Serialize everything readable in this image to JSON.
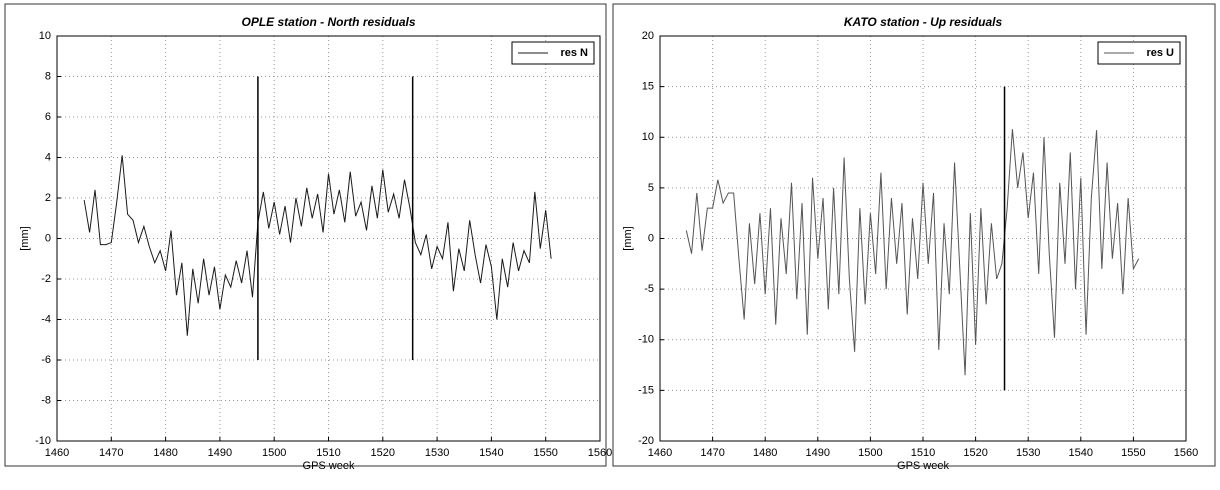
{
  "chart_data": [
    {
      "type": "line",
      "title": "OPLE station - North residuals",
      "x_label": "GPS week",
      "y_label": "[mm]",
      "x": [
        1465,
        1466,
        1467,
        1468,
        1469,
        1470,
        1471,
        1472,
        1473,
        1474,
        1475,
        1476,
        1477,
        1478,
        1479,
        1480,
        1481,
        1482,
        1483,
        1484,
        1485,
        1486,
        1487,
        1488,
        1489,
        1490,
        1491,
        1492,
        1493,
        1494,
        1495,
        1496,
        1497,
        1498,
        1499,
        1500,
        1501,
        1502,
        1503,
        1504,
        1505,
        1506,
        1507,
        1508,
        1509,
        1510,
        1511,
        1512,
        1513,
        1514,
        1515,
        1516,
        1517,
        1518,
        1519,
        1520,
        1521,
        1522,
        1523,
        1524,
        1525,
        1526,
        1527,
        1528,
        1529,
        1530,
        1531,
        1532,
        1533,
        1534,
        1535,
        1536,
        1537,
        1538,
        1539,
        1540,
        1541,
        1542,
        1543,
        1544,
        1545,
        1546,
        1547,
        1548,
        1549,
        1550,
        1551
      ],
      "series": [
        {
          "name": "res N",
          "color": "#1a1a1a",
          "values": [
            1.9,
            0.3,
            2.4,
            -0.3,
            -0.3,
            -0.2,
            1.8,
            4.1,
            1.2,
            0.9,
            -0.2,
            0.6,
            -0.4,
            -1.2,
            -0.6,
            -1.6,
            0.4,
            -2.8,
            -1.2,
            -4.8,
            -1.5,
            -3.2,
            -1.0,
            -2.8,
            -1.4,
            -3.5,
            -1.8,
            -2.4,
            -1.1,
            -2.2,
            -0.6,
            -2.9,
            0.8,
            2.3,
            0.5,
            1.8,
            0.2,
            1.6,
            -0.2,
            2.0,
            0.6,
            2.5,
            1.0,
            2.2,
            0.3,
            3.2,
            1.2,
            2.4,
            0.8,
            3.3,
            1.1,
            1.8,
            0.4,
            2.6,
            1.0,
            3.4,
            1.3,
            2.2,
            1.0,
            2.9,
            1.5,
            -0.2,
            -0.8,
            0.2,
            -1.5,
            -0.4,
            -1.0,
            0.8,
            -2.6,
            -0.5,
            -1.6,
            0.9,
            -0.8,
            -2.2,
            -0.3,
            -1.4,
            -4.0,
            -1.0,
            -2.4,
            -0.2,
            -1.6,
            -0.6,
            -1.2,
            2.3,
            -0.5,
            1.4,
            -1.0
          ]
        }
      ],
      "vlines": [
        {
          "x": 1497,
          "y": [
            -6,
            8
          ],
          "color": "#000000"
        },
        {
          "x": 1525.5,
          "y": [
            -6,
            8
          ],
          "color": "#000000"
        }
      ],
      "xlim": [
        1460,
        1560
      ],
      "xticks": [
        1460,
        1470,
        1480,
        1490,
        1500,
        1510,
        1520,
        1530,
        1540,
        1550,
        1560
      ],
      "ylim": [
        -10,
        10
      ],
      "yticks": [
        -10,
        -8,
        -6,
        -4,
        -2,
        0,
        2,
        4,
        6,
        8,
        10
      ],
      "grid": true,
      "legend": "upper right"
    },
    {
      "type": "line",
      "title": "KATO station - Up residuals",
      "x_label": "GPS week",
      "y_label": "[mm]",
      "x": [
        1465,
        1466,
        1467,
        1468,
        1469,
        1470,
        1471,
        1472,
        1473,
        1474,
        1475,
        1476,
        1477,
        1478,
        1479,
        1480,
        1481,
        1482,
        1483,
        1484,
        1485,
        1486,
        1487,
        1488,
        1489,
        1490,
        1491,
        1492,
        1493,
        1494,
        1495,
        1496,
        1497,
        1498,
        1499,
        1500,
        1501,
        1502,
        1503,
        1504,
        1505,
        1506,
        1507,
        1508,
        1509,
        1510,
        1511,
        1512,
        1513,
        1514,
        1515,
        1516,
        1517,
        1518,
        1519,
        1520,
        1521,
        1522,
        1523,
        1524,
        1525,
        1526,
        1527,
        1528,
        1529,
        1530,
        1531,
        1532,
        1533,
        1534,
        1535,
        1536,
        1537,
        1538,
        1539,
        1540,
        1541,
        1542,
        1543,
        1544,
        1545,
        1546,
        1547,
        1548,
        1549,
        1550,
        1551
      ],
      "series": [
        {
          "name": "res U",
          "color": "#555555",
          "values": [
            0.8,
            -1.5,
            4.5,
            -1.2,
            3.0,
            3.0,
            5.8,
            3.5,
            4.5,
            4.5,
            -2.0,
            -8.0,
            1.5,
            -4.5,
            2.5,
            -5.5,
            3.0,
            -8.5,
            2.0,
            -3.5,
            5.5,
            -6.0,
            3.5,
            -9.5,
            6.0,
            -2.0,
            4.0,
            -7.0,
            5.0,
            -5.5,
            8.0,
            -4.0,
            -11.2,
            3.0,
            -6.5,
            2.5,
            -3.5,
            6.5,
            -5.0,
            4.0,
            -2.5,
            3.5,
            -7.5,
            2.0,
            -4.0,
            5.5,
            -2.5,
            4.5,
            -11.0,
            1.5,
            -5.5,
            7.5,
            -3.0,
            -13.5,
            2.5,
            -10.5,
            3.0,
            -6.5,
            1.5,
            -4.0,
            -2.5,
            3.0,
            10.8,
            5.0,
            8.5,
            2.0,
            6.5,
            -3.5,
            10.0,
            -1.5,
            -9.8,
            5.5,
            -2.5,
            8.5,
            -5.0,
            6.0,
            -9.5,
            4.0,
            10.7,
            -3.0,
            7.5,
            -2.0,
            3.5,
            -5.5,
            4.0,
            -3.0,
            -2.0
          ]
        }
      ],
      "vlines": [
        {
          "x": 1525.5,
          "y": [
            -15,
            15
          ],
          "color": "#000000"
        }
      ],
      "xlim": [
        1460,
        1560
      ],
      "xticks": [
        1460,
        1470,
        1480,
        1490,
        1500,
        1510,
        1520,
        1530,
        1540,
        1550,
        1560
      ],
      "ylim": [
        -20,
        20
      ],
      "yticks": [
        -20,
        -15,
        -10,
        -5,
        0,
        5,
        10,
        15,
        20
      ],
      "grid": true,
      "legend": "upper right"
    }
  ]
}
